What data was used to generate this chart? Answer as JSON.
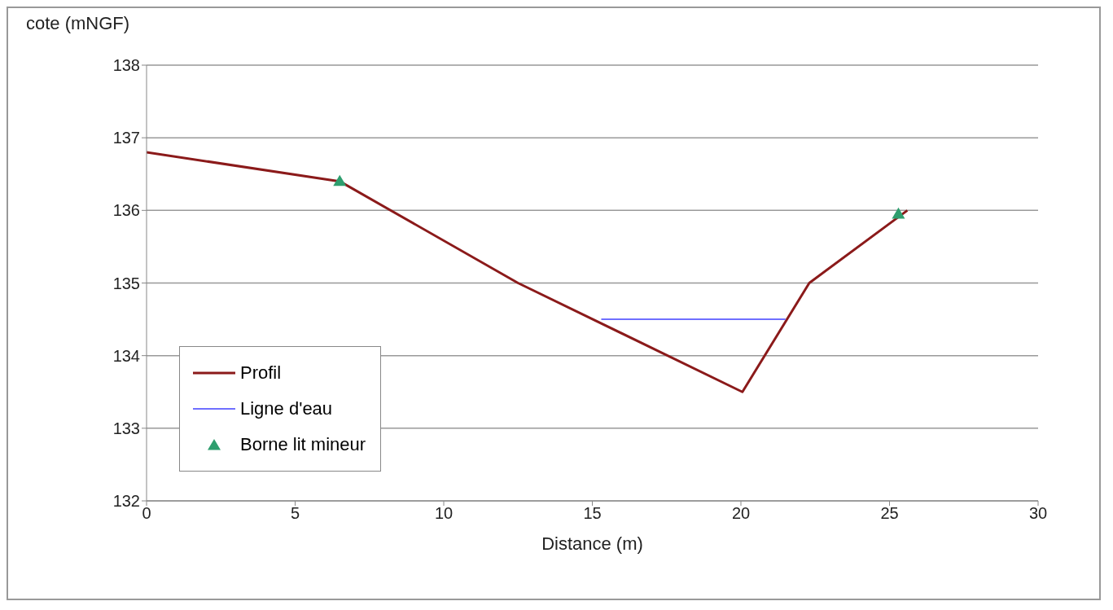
{
  "chart_data": {
    "type": "line",
    "xlabel": "Distance (m)",
    "ylabel": "cote (mNGF)",
    "xlim": [
      0,
      30
    ],
    "xticks": [
      0,
      5,
      10,
      15,
      20,
      25,
      30
    ],
    "ylim": [
      132,
      138
    ],
    "yticks": [
      132,
      133,
      134,
      135,
      136,
      137,
      138
    ],
    "grid": "y",
    "legend": "bottom left",
    "series": [
      {
        "name": "Profil",
        "color": "#8b1a1a",
        "x": [
          0,
          6.5,
          12.5,
          20.05,
          22.3,
          25.6
        ],
        "values": [
          136.8,
          136.4,
          135.0,
          133.5,
          135.0,
          136.0
        ]
      },
      {
        "name": "Ligne d'eau",
        "color": "#6f6fff",
        "x": [
          15.3,
          21.5
        ],
        "values": [
          134.5,
          134.5
        ]
      },
      {
        "name": "Borne lit mineur",
        "type": "scatter",
        "marker": "triangle",
        "color": "#2e9e6e",
        "x": [
          6.5,
          25.3
        ],
        "values": [
          136.4,
          135.95
        ]
      }
    ]
  }
}
